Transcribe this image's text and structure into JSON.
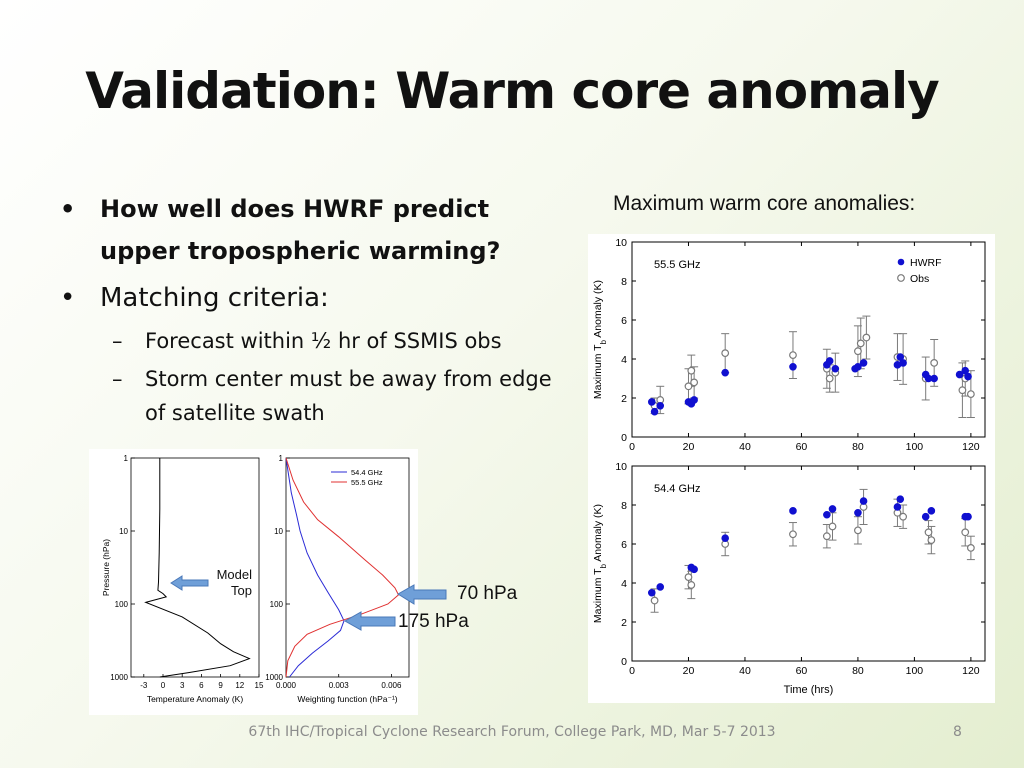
{
  "title": "Validation: Warm core anomaly",
  "bullets": {
    "b1": "How well does HWRF predict upper tropospheric warming?",
    "b2": "Matching criteria:",
    "s1": "Forecast within ½ hr of SSMIS obs",
    "s2": "Storm center must be away from edge of satellite swath",
    "bullet_char": "•",
    "dash_char": "–"
  },
  "caption": "Maximum warm core anomalies:",
  "annotations": {
    "hpa70": "70 hPa",
    "hpa175": "175 hPa",
    "model_top": [
      "Model",
      "Top"
    ]
  },
  "footer": "67th IHC/Tropical Cyclone Research Forum, College Park, MD, Mar 5-7 2013",
  "page_number": "8",
  "colors": {
    "hwrf": "#1010d0",
    "obs": "#7a7a7a",
    "ch544": "#2b2bd6",
    "ch555": "#e03030",
    "arrow": "#6f9fd8"
  },
  "chart_data": [
    {
      "type": "scatter",
      "label": "55.5 GHz",
      "ylabel": "Maximum T_b Anomaly (K)",
      "xlabel": "",
      "xlim": [
        0,
        125
      ],
      "ylim": [
        0,
        10
      ],
      "xticks": [
        0,
        20,
        40,
        60,
        80,
        100,
        120
      ],
      "yticks": [
        0,
        2,
        4,
        6,
        8,
        10
      ],
      "legend": [
        "HWRF",
        "Obs"
      ],
      "legend_position": "top-right",
      "series": [
        {
          "name": "HWRF",
          "marker": "filled",
          "points": [
            [
              7,
              1.8
            ],
            [
              8,
              1.3
            ],
            [
              10,
              1.6
            ],
            [
              20,
              1.8
            ],
            [
              21,
              1.7
            ],
            [
              22,
              1.9
            ],
            [
              33,
              3.3
            ],
            [
              57,
              3.6
            ],
            [
              69,
              3.7
            ],
            [
              70,
              3.9
            ],
            [
              72,
              3.5
            ],
            [
              79,
              3.5
            ],
            [
              80,
              3.6
            ],
            [
              82,
              3.8
            ],
            [
              94,
              3.7
            ],
            [
              95,
              4.1
            ],
            [
              96,
              3.8
            ],
            [
              104,
              3.2
            ],
            [
              105,
              3.0
            ],
            [
              107,
              3.0
            ],
            [
              116,
              3.2
            ],
            [
              118,
              3.4
            ],
            [
              119,
              3.1
            ]
          ]
        },
        {
          "name": "Obs",
          "marker": "open",
          "points": [
            [
              8,
              1.6,
              0.4
            ],
            [
              10,
              1.9,
              0.7
            ],
            [
              20,
              2.6,
              0.9
            ],
            [
              21,
              3.4,
              0.8
            ],
            [
              22,
              2.8,
              0.8
            ],
            [
              33,
              4.3,
              1.0
            ],
            [
              57,
              4.2,
              1.2
            ],
            [
              69,
              3.5,
              1.0
            ],
            [
              70,
              3.0,
              0.7
            ],
            [
              72,
              3.3,
              1.0
            ],
            [
              80,
              4.4,
              1.3
            ],
            [
              81,
              4.8,
              1.3
            ],
            [
              83,
              5.1,
              1.1
            ],
            [
              94,
              4.1,
              1.2
            ],
            [
              96,
              4.0,
              1.3
            ],
            [
              104,
              3.0,
              1.1
            ],
            [
              107,
              3.8,
              1.2
            ],
            [
              117,
              2.4,
              1.4
            ],
            [
              118,
              3.0,
              0.9
            ],
            [
              120,
              2.2,
              1.2
            ]
          ]
        }
      ]
    },
    {
      "type": "scatter",
      "label": "54.4 GHz",
      "ylabel": "Maximum T_b Anomaly (K)",
      "xlabel": "Time (hrs)",
      "xlim": [
        0,
        125
      ],
      "ylim": [
        0,
        10
      ],
      "xticks": [
        0,
        20,
        40,
        60,
        80,
        100,
        120
      ],
      "yticks": [
        0,
        2,
        4,
        6,
        8,
        10
      ],
      "series": [
        {
          "name": "HWRF",
          "marker": "filled",
          "points": [
            [
              7,
              3.5
            ],
            [
              10,
              3.8
            ],
            [
              21,
              4.8
            ],
            [
              22,
              4.7
            ],
            [
              33,
              6.3
            ],
            [
              57,
              7.7
            ],
            [
              69,
              7.5
            ],
            [
              71,
              7.8
            ],
            [
              80,
              7.6
            ],
            [
              82,
              8.2
            ],
            [
              94,
              7.9
            ],
            [
              95,
              8.3
            ],
            [
              104,
              7.4
            ],
            [
              106,
              7.7
            ],
            [
              118,
              7.4
            ],
            [
              119,
              7.4
            ]
          ]
        },
        {
          "name": "Obs",
          "marker": "open",
          "points": [
            [
              8,
              3.1,
              0.6
            ],
            [
              20,
              4.3,
              0.6
            ],
            [
              21,
              3.9,
              0.7
            ],
            [
              33,
              6.0,
              0.6
            ],
            [
              57,
              6.5,
              0.6
            ],
            [
              69,
              6.4,
              0.6
            ],
            [
              71,
              6.9,
              0.7
            ],
            [
              80,
              6.7,
              0.7
            ],
            [
              82,
              7.9,
              0.9
            ],
            [
              94,
              7.6,
              0.7
            ],
            [
              96,
              7.4,
              0.6
            ],
            [
              105,
              6.6,
              0.6
            ],
            [
              106,
              6.2,
              0.7
            ],
            [
              118,
              6.6,
              0.7
            ],
            [
              120,
              5.8,
              0.6
            ]
          ]
        }
      ]
    },
    {
      "type": "line",
      "ylabel": "Pressure (hPa)",
      "xlabel": "Temperature Anomaly (K)",
      "xlim": [
        -5,
        15
      ],
      "xticks": [
        -3,
        0,
        3,
        6,
        9,
        12,
        15
      ],
      "yticks": [
        1,
        10,
        100,
        1000
      ],
      "yscale": "log-inverted",
      "series": [
        {
          "name": "",
          "points": [
            [
              -0.5,
              1
            ],
            [
              -0.5,
              5
            ],
            [
              -0.6,
              20
            ],
            [
              -0.7,
              50
            ],
            [
              -0.8,
              65
            ],
            [
              0,
              72
            ],
            [
              0.5,
              80
            ],
            [
              -2.7,
              95
            ],
            [
              3,
              150
            ],
            [
              7,
              250
            ],
            [
              9,
              350
            ],
            [
              11,
              450
            ],
            [
              13.5,
              560
            ],
            [
              10.5,
              700
            ],
            [
              4,
              870
            ],
            [
              -0.5,
              1000
            ]
          ]
        }
      ]
    },
    {
      "type": "line",
      "xlabel": "Weighting function (hPa⁻¹)",
      "xlim": [
        0,
        0.007
      ],
      "xticks": [
        0.0,
        0.003,
        0.006
      ],
      "xtick_labels": [
        "0.000",
        "0.003",
        "0.006"
      ],
      "yticks": [
        1,
        10,
        100,
        1000
      ],
      "yscale": "log-inverted",
      "legend": [
        "54.4 GHz",
        "55.5 GHz"
      ],
      "legend_position": "top-right",
      "series": [
        {
          "name": "54.4 GHz",
          "points": [
            [
              0.0,
              1
            ],
            [
              0.0003,
              3
            ],
            [
              0.0006,
              6
            ],
            [
              0.0008,
              10
            ],
            [
              0.0012,
              20
            ],
            [
              0.0018,
              40
            ],
            [
              0.0024,
              70
            ],
            [
              0.003,
              120
            ],
            [
              0.0033,
              170
            ],
            [
              0.0031,
              230
            ],
            [
              0.0024,
              320
            ],
            [
              0.0015,
              470
            ],
            [
              0.0007,
              700
            ],
            [
              0.0002,
              1000
            ]
          ]
        },
        {
          "name": "55.5 GHz",
          "points": [
            [
              0.0,
              1
            ],
            [
              0.0004,
              2
            ],
            [
              0.001,
              4
            ],
            [
              0.0018,
              7
            ],
            [
              0.003,
              12
            ],
            [
              0.0045,
              25
            ],
            [
              0.0055,
              40
            ],
            [
              0.0062,
              60
            ],
            [
              0.0064,
              75
            ],
            [
              0.0058,
              100
            ],
            [
              0.0042,
              140
            ],
            [
              0.0025,
              190
            ],
            [
              0.0012,
              260
            ],
            [
              0.0005,
              380
            ],
            [
              0.0001,
              600
            ],
            [
              0.0,
              1000
            ]
          ]
        }
      ]
    }
  ]
}
